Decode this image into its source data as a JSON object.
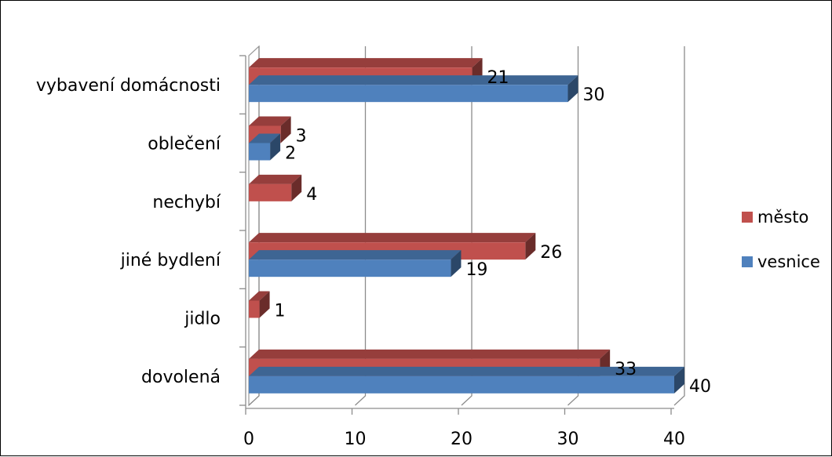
{
  "chart_data": {
    "type": "bar",
    "orientation": "horizontal",
    "style": "3d-clustered",
    "categories": [
      "vybavení domácnosti",
      "oblečení",
      "nechybí",
      "jiné bydlení",
      "jidlo",
      "dovolená"
    ],
    "series": [
      {
        "name": "město",
        "color": "#c0504d",
        "values": [
          21,
          3,
          4,
          26,
          1,
          33
        ]
      },
      {
        "name": "vesnice",
        "color": "#4f81bd",
        "values": [
          30,
          2,
          0,
          19,
          0,
          40
        ]
      }
    ],
    "data_labels": [
      [
        "21",
        "3",
        "4",
        "26",
        "1",
        "33"
      ],
      [
        "30",
        "2",
        "",
        "19",
        "",
        "40"
      ]
    ],
    "xticks": [
      "0",
      "10",
      "20",
      "30",
      "40"
    ],
    "xlim": [
      0,
      40
    ],
    "grid": true,
    "legend": "right"
  }
}
